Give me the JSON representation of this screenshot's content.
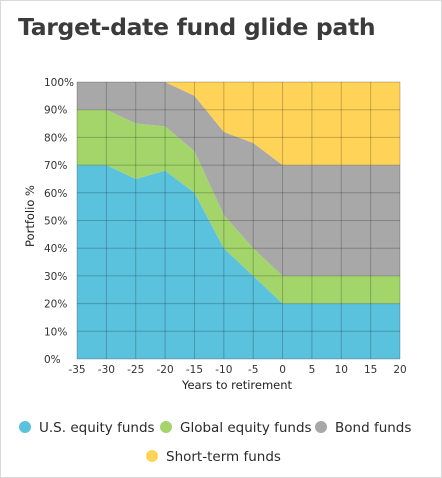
{
  "title": "Target-date fund glide path",
  "chart_data": {
    "type": "area",
    "stacked": true,
    "title": "Target-date fund glide path",
    "xlabel": "Years to retirement",
    "ylabel": "Portfolio %",
    "x": [
      -35,
      -30,
      -25,
      -20,
      -15,
      -10,
      -5,
      0,
      5,
      10,
      15,
      20
    ],
    "xlim": [
      -35,
      20
    ],
    "ylim": [
      0,
      100
    ],
    "x_ticks": [
      "-35",
      "-30",
      "-25",
      "-20",
      "-15",
      "-10",
      "-5",
      "0",
      "5",
      "10",
      "15",
      "20"
    ],
    "y_ticks": [
      "0%",
      "10%",
      "20%",
      "30%",
      "40%",
      "50%",
      "60%",
      "70%",
      "80%",
      "90%",
      "100%"
    ],
    "grid": true,
    "legend_position": "bottom",
    "series": [
      {
        "name": "U.S. equity funds",
        "color": "#5bc2de",
        "values": [
          70,
          70,
          65,
          68,
          60,
          40,
          30,
          20,
          20,
          20,
          20,
          20
        ]
      },
      {
        "name": "Global equity funds",
        "color": "#a3d56b",
        "values": [
          20,
          20,
          20,
          16,
          15,
          12,
          10,
          10,
          10,
          10,
          10,
          10
        ]
      },
      {
        "name": "Bond funds",
        "color": "#a8a8a8",
        "values": [
          10,
          10,
          15,
          16,
          20,
          30,
          38,
          40,
          40,
          40,
          40,
          40
        ]
      },
      {
        "name": "Short-term funds",
        "color": "#ffd357",
        "values": [
          0,
          0,
          0,
          0,
          5,
          18,
          22,
          30,
          30,
          30,
          30,
          30
        ]
      }
    ]
  }
}
